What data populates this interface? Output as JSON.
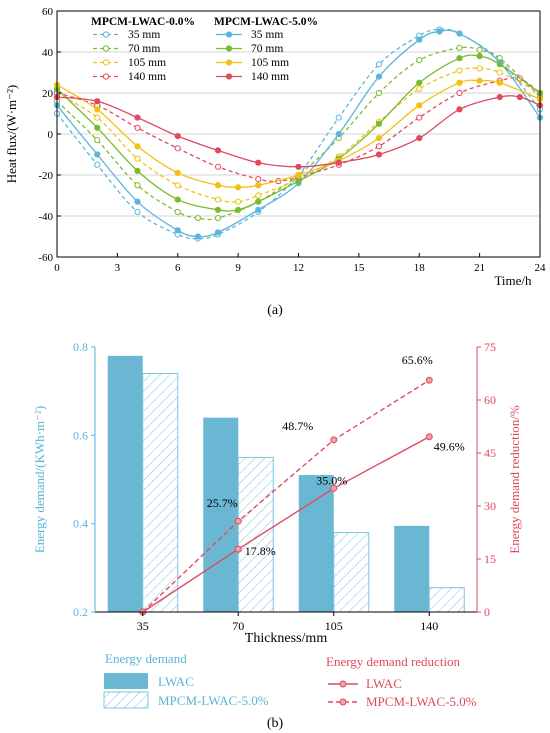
{
  "colors": {
    "blue": "#5bb5dd",
    "green": "#79bb2e",
    "yellow": "#f2c012",
    "red": "#e04a5f",
    "bar_blue": "#6ab7d4",
    "hatch_blue": "#7ec4e0",
    "red_axis": "#e04a5f",
    "blue_axis": "#5ab3d8",
    "grid": "#c8c8c8"
  },
  "panel_a_label": "(a)",
  "panel_b_label": "(b)",
  "chart_data": [
    {
      "type": "line",
      "xlabel": "Time/h",
      "ylabel": "Heat flux/(W·m⁻²)",
      "xlim": [
        0,
        24
      ],
      "ylim": [
        -60,
        60
      ],
      "xticks": [
        0,
        3,
        6,
        9,
        12,
        15,
        18,
        21,
        24
      ],
      "yticks": [
        -60,
        -40,
        -20,
        0,
        20,
        40,
        60
      ],
      "grid": "horizontal",
      "legend_position": "top-left",
      "legend_groups": [
        "MPCM-LWAC-0.0%",
        "MPCM-LWAC-5.0%"
      ],
      "series": [
        {
          "name": "35 mm",
          "group": "MPCM-LWAC-0.0%",
          "style": "dashed",
          "color": "blue",
          "points": [
            [
              0,
              10
            ],
            [
              2,
              -15
            ],
            [
              4,
              -38
            ],
            [
              6,
              -49
            ],
            [
              7,
              -51
            ],
            [
              8,
              -49
            ],
            [
              10,
              -38
            ],
            [
              12,
              -20
            ],
            [
              14,
              8
            ],
            [
              16,
              34
            ],
            [
              18,
              48
            ],
            [
              19,
              51
            ],
            [
              20,
              49
            ],
            [
              22,
              36
            ],
            [
              24,
              12
            ]
          ]
        },
        {
          "name": "70 mm",
          "group": "MPCM-LWAC-0.0%",
          "style": "dashed",
          "color": "green",
          "points": [
            [
              0,
              16
            ],
            [
              2,
              -3
            ],
            [
              4,
              -25
            ],
            [
              6,
              -38
            ],
            [
              7,
              -41
            ],
            [
              8,
              -41
            ],
            [
              10,
              -33
            ],
            [
              12,
              -20
            ],
            [
              14,
              -2
            ],
            [
              16,
              20
            ],
            [
              18,
              36
            ],
            [
              20,
              42
            ],
            [
              21,
              41
            ],
            [
              22,
              37
            ],
            [
              24,
              18
            ]
          ]
        },
        {
          "name": "105 mm",
          "group": "MPCM-LWAC-0.0%",
          "style": "dashed",
          "color": "yellow",
          "points": [
            [
              0,
              20
            ],
            [
              2,
              8
            ],
            [
              4,
              -12
            ],
            [
              6,
              -25
            ],
            [
              8,
              -32
            ],
            [
              9,
              -33
            ],
            [
              10,
              -30
            ],
            [
              12,
              -22
            ],
            [
              14,
              -11
            ],
            [
              16,
              6
            ],
            [
              18,
              22
            ],
            [
              20,
              31
            ],
            [
              21,
              32
            ],
            [
              22,
              30
            ],
            [
              24,
              20
            ]
          ]
        },
        {
          "name": "140 mm",
          "group": "MPCM-LWAC-0.0%",
          "style": "dashed",
          "color": "red",
          "points": [
            [
              0,
              20
            ],
            [
              2,
              14
            ],
            [
              4,
              3
            ],
            [
              6,
              -7
            ],
            [
              8,
              -16
            ],
            [
              10,
              -22
            ],
            [
              11,
              -23
            ],
            [
              12,
              -21
            ],
            [
              14,
              -15
            ],
            [
              16,
              -6
            ],
            [
              18,
              8
            ],
            [
              20,
              20
            ],
            [
              22,
              26
            ],
            [
              23,
              27
            ],
            [
              24,
              20
            ]
          ]
        },
        {
          "name": "35 mm",
          "group": "MPCM-LWAC-5.0%",
          "style": "solid",
          "color": "blue",
          "points": [
            [
              0,
              14
            ],
            [
              2,
              -10
            ],
            [
              4,
              -33
            ],
            [
              6,
              -47
            ],
            [
              7,
              -50
            ],
            [
              8,
              -48
            ],
            [
              10,
              -37
            ],
            [
              12,
              -24
            ],
            [
              14,
              0
            ],
            [
              16,
              28
            ],
            [
              18,
              46
            ],
            [
              19,
              50
            ],
            [
              20,
              49
            ],
            [
              22,
              35
            ],
            [
              24,
              8
            ]
          ]
        },
        {
          "name": "70 mm",
          "group": "MPCM-LWAC-5.0%",
          "style": "solid",
          "color": "green",
          "points": [
            [
              0,
              22
            ],
            [
              2,
              3
            ],
            [
              4,
              -18
            ],
            [
              6,
              -32
            ],
            [
              8,
              -37
            ],
            [
              9,
              -37
            ],
            [
              10,
              -33
            ],
            [
              12,
              -23
            ],
            [
              14,
              -12
            ],
            [
              16,
              5
            ],
            [
              18,
              25
            ],
            [
              20,
              37
            ],
            [
              21,
              38
            ],
            [
              22,
              34
            ],
            [
              24,
              20
            ]
          ]
        },
        {
          "name": "105 mm",
          "group": "MPCM-LWAC-5.0%",
          "style": "solid",
          "color": "yellow",
          "points": [
            [
              0,
              24
            ],
            [
              2,
              12
            ],
            [
              4,
              -6
            ],
            [
              6,
              -19
            ],
            [
              8,
              -25
            ],
            [
              9,
              -26
            ],
            [
              10,
              -25
            ],
            [
              12,
              -20
            ],
            [
              14,
              -13
            ],
            [
              16,
              -2
            ],
            [
              18,
              14
            ],
            [
              20,
              25
            ],
            [
              21,
              26
            ],
            [
              22,
              25
            ],
            [
              24,
              17
            ]
          ]
        },
        {
          "name": "140 mm",
          "group": "MPCM-LWAC-5.0%",
          "style": "solid",
          "color": "red",
          "points": [
            [
              0,
              18
            ],
            [
              2,
              16
            ],
            [
              4,
              8
            ],
            [
              6,
              -1
            ],
            [
              8,
              -8
            ],
            [
              10,
              -14
            ],
            [
              12,
              -16
            ],
            [
              14,
              -14
            ],
            [
              16,
              -10
            ],
            [
              18,
              -2
            ],
            [
              20,
              12
            ],
            [
              22,
              18
            ],
            [
              23,
              18
            ],
            [
              24,
              14
            ]
          ]
        }
      ]
    },
    {
      "type": "bar",
      "xlabel": "Thickness/mm",
      "ylabel": "Energy demand/(KWh·m⁻²)",
      "y2label": "Energy demand reduction/%",
      "categories": [
        "35",
        "70",
        "105",
        "140"
      ],
      "ylim": [
        0.2,
        0.8
      ],
      "yticks": [
        0.2,
        0.4,
        0.6,
        0.8
      ],
      "y2lim": [
        0,
        75
      ],
      "y2ticks": [
        0,
        15,
        30,
        45,
        60,
        75
      ],
      "bar_series": [
        {
          "name": "LWAC",
          "fill": "solid",
          "values": [
            0.78,
            0.64,
            0.51,
            0.395
          ]
        },
        {
          "name": "MPCM-LWAC-5.0%",
          "fill": "hatched",
          "values": [
            0.74,
            0.55,
            0.38,
            0.255
          ]
        }
      ],
      "line_series": [
        {
          "name": "LWAC",
          "style": "solid",
          "values": [
            0,
            17.8,
            35.0,
            49.6
          ],
          "labels": [
            "",
            "17.8%",
            "35.0%",
            "49.6%"
          ]
        },
        {
          "name": "MPCM-LWAC-5.0%",
          "style": "dashed",
          "values": [
            0,
            25.7,
            48.7,
            65.6
          ],
          "labels": [
            "",
            "25.7%",
            "48.7%",
            "65.6%"
          ]
        }
      ],
      "legend_titles": {
        "bars": "Energy demand",
        "lines": "Energy demand reduction"
      },
      "legend_position": "bottom"
    }
  ]
}
